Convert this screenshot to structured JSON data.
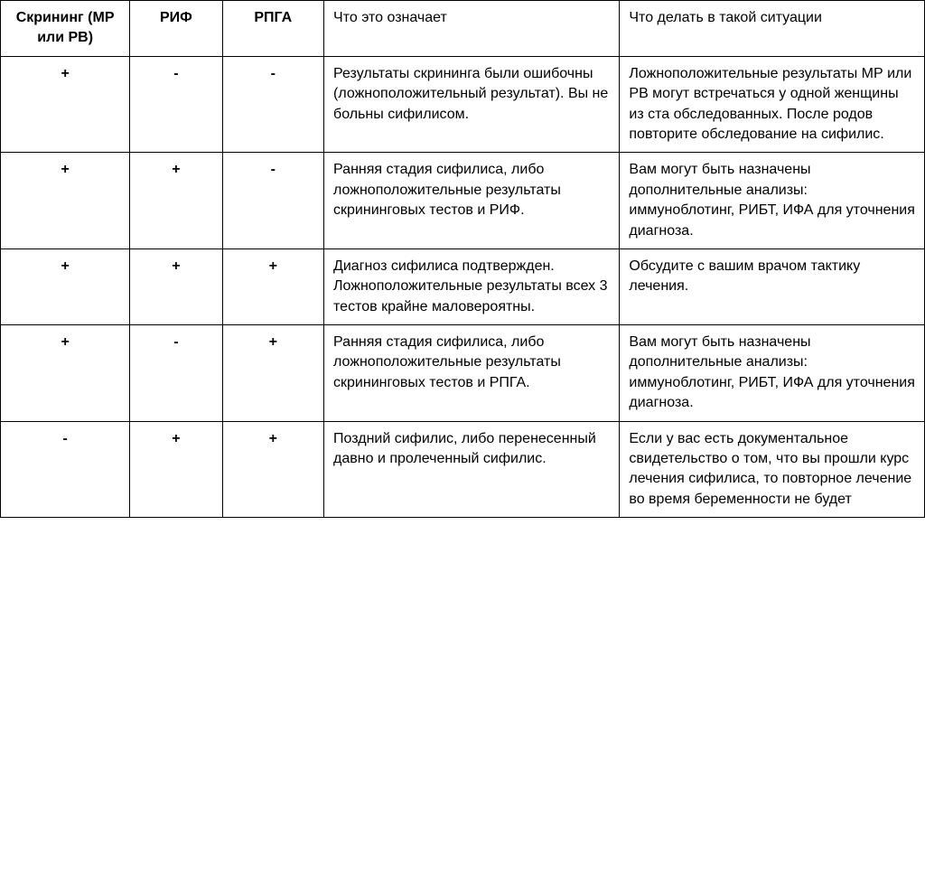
{
  "table": {
    "structure": "table",
    "border_color": "#000000",
    "background_color": "#ffffff",
    "text_color": "#000000",
    "font_family": "Arial, sans-serif",
    "body_fontsize": 16,
    "header_fontsize": 16,
    "columns": [
      {
        "key": "screening",
        "label": "Скрининг (МР или РВ)",
        "width_pct": 14,
        "align": "center",
        "bold": true
      },
      {
        "key": "rif",
        "label": "РИФ",
        "width_pct": 10,
        "align": "center",
        "bold": true
      },
      {
        "key": "rpga",
        "label": "РПГА",
        "width_pct": 11,
        "align": "center",
        "bold": true
      },
      {
        "key": "meaning",
        "label": "Что это означает",
        "width_pct": 32,
        "align": "left",
        "bold": false
      },
      {
        "key": "action",
        "label": "Что делать в такой ситуации",
        "width_pct": 33,
        "align": "left",
        "bold": false
      }
    ],
    "rows": [
      {
        "screening": "+",
        "rif": "-",
        "rpga": "-",
        "meaning": "Результаты скрининга были ошибочны (ложноположительный результат). Вы не больны сифилисом.",
        "action": "Ложноположительные результаты МР или РВ могут встречаться у одной женщины из ста обследованных. После родов повторите обследование на сифилис."
      },
      {
        "screening": "+",
        "rif": "+",
        "rpga": "-",
        "meaning": "Ранняя стадия сифилиса, либо ложноположительные результаты скрининговых тестов и РИФ.",
        "action": "Вам могут быть назначены дополнительные анализы: иммуноблотинг, РИБТ, ИФА для уточнения диагноза."
      },
      {
        "screening": "+",
        "rif": "+",
        "rpga": "+",
        "meaning": "Диагноз сифилиса подтвержден. Ложноположительные результаты всех 3 тестов крайне маловероятны.",
        "action": "Обсудите с вашим врачом тактику лечения."
      },
      {
        "screening": "+",
        "rif": "-",
        "rpga": "+",
        "meaning": "Ранняя стадия сифилиса, либо ложноположительные результаты скрининговых тестов и РПГА.",
        "action": "Вам могут быть назначены дополнительные анализы: иммуноблотинг, РИБТ, ИФА для уточнения диагноза."
      },
      {
        "screening": "-",
        "rif": "+",
        "rpga": "+",
        "meaning": "Поздний сифилис, либо перенесенный давно и пролеченный сифилис.",
        "action": "Если у вас есть документальное свидетельство о том, что вы прошли курс лечения сифилиса, то повторное лечение  во время беременности не будет"
      }
    ]
  }
}
